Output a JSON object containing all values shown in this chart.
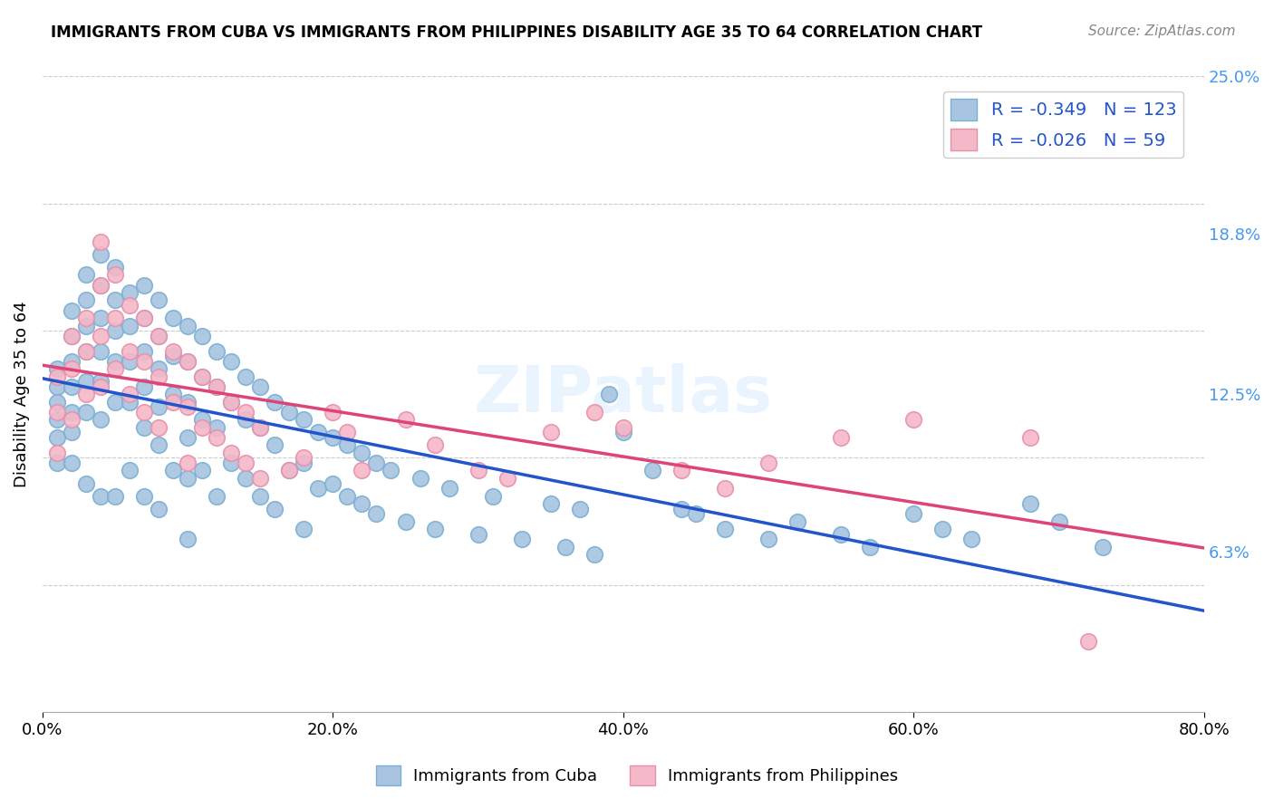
{
  "title": "IMMIGRANTS FROM CUBA VS IMMIGRANTS FROM PHILIPPINES DISABILITY AGE 35 TO 64 CORRELATION CHART",
  "source": "Source: ZipAtlas.com",
  "ylabel": "Disability Age 35 to 64",
  "xmin": 0.0,
  "xmax": 0.8,
  "ymin": 0.0,
  "ymax": 0.25,
  "yticks": [
    0.063,
    0.125,
    0.188,
    0.25
  ],
  "ytick_labels": [
    "6.3%",
    "12.5%",
    "18.8%",
    "25.0%"
  ],
  "xticks": [
    0.0,
    0.2,
    0.4,
    0.6,
    0.8
  ],
  "xtick_labels": [
    "0.0%",
    "20.0%",
    "40.0%",
    "60.0%",
    "80.0%"
  ],
  "cuba_color": "#a8c4e0",
  "cuba_edge": "#7bafd4",
  "philippines_color": "#f4b8c8",
  "philippines_edge": "#e890aa",
  "cuba_line_color": "#2255cc",
  "philippines_line_color": "#dd4477",
  "cuba_R": "-0.349",
  "cuba_N": "123",
  "philippines_R": "-0.026",
  "philippines_N": "59",
  "watermark": "ZIPatlas",
  "cuba_points_x": [
    0.01,
    0.01,
    0.01,
    0.01,
    0.01,
    0.01,
    0.02,
    0.02,
    0.02,
    0.02,
    0.02,
    0.02,
    0.02,
    0.03,
    0.03,
    0.03,
    0.03,
    0.03,
    0.03,
    0.03,
    0.04,
    0.04,
    0.04,
    0.04,
    0.04,
    0.04,
    0.04,
    0.05,
    0.05,
    0.05,
    0.05,
    0.05,
    0.05,
    0.06,
    0.06,
    0.06,
    0.06,
    0.06,
    0.07,
    0.07,
    0.07,
    0.07,
    0.07,
    0.07,
    0.08,
    0.08,
    0.08,
    0.08,
    0.08,
    0.08,
    0.09,
    0.09,
    0.09,
    0.09,
    0.1,
    0.1,
    0.1,
    0.1,
    0.1,
    0.1,
    0.11,
    0.11,
    0.11,
    0.11,
    0.12,
    0.12,
    0.12,
    0.12,
    0.13,
    0.13,
    0.13,
    0.14,
    0.14,
    0.14,
    0.15,
    0.15,
    0.15,
    0.16,
    0.16,
    0.16,
    0.17,
    0.17,
    0.18,
    0.18,
    0.18,
    0.19,
    0.19,
    0.2,
    0.2,
    0.21,
    0.21,
    0.22,
    0.22,
    0.23,
    0.23,
    0.24,
    0.25,
    0.26,
    0.27,
    0.28,
    0.3,
    0.31,
    0.33,
    0.35,
    0.36,
    0.37,
    0.38,
    0.39,
    0.4,
    0.42,
    0.44,
    0.45,
    0.47,
    0.5,
    0.52,
    0.55,
    0.57,
    0.6,
    0.62,
    0.64,
    0.68,
    0.7,
    0.73
  ],
  "cuba_points_y": [
    0.135,
    0.128,
    0.122,
    0.115,
    0.108,
    0.098,
    0.158,
    0.148,
    0.138,
    0.128,
    0.118,
    0.11,
    0.098,
    0.172,
    0.162,
    0.152,
    0.142,
    0.13,
    0.118,
    0.09,
    0.18,
    0.168,
    0.155,
    0.142,
    0.13,
    0.115,
    0.085,
    0.175,
    0.162,
    0.15,
    0.138,
    0.122,
    0.085,
    0.165,
    0.152,
    0.138,
    0.122,
    0.095,
    0.168,
    0.155,
    0.142,
    0.128,
    0.112,
    0.085,
    0.162,
    0.148,
    0.135,
    0.12,
    0.105,
    0.08,
    0.155,
    0.14,
    0.125,
    0.095,
    0.152,
    0.138,
    0.122,
    0.108,
    0.092,
    0.068,
    0.148,
    0.132,
    0.115,
    0.095,
    0.142,
    0.128,
    0.112,
    0.085,
    0.138,
    0.122,
    0.098,
    0.132,
    0.115,
    0.092,
    0.128,
    0.112,
    0.085,
    0.122,
    0.105,
    0.08,
    0.118,
    0.095,
    0.115,
    0.098,
    0.072,
    0.11,
    0.088,
    0.108,
    0.09,
    0.105,
    0.085,
    0.102,
    0.082,
    0.098,
    0.078,
    0.095,
    0.075,
    0.092,
    0.072,
    0.088,
    0.07,
    0.085,
    0.068,
    0.082,
    0.065,
    0.08,
    0.062,
    0.125,
    0.11,
    0.095,
    0.08,
    0.078,
    0.072,
    0.068,
    0.075,
    0.07,
    0.065,
    0.078,
    0.072,
    0.068,
    0.082,
    0.075,
    0.065
  ],
  "phil_points_x": [
    0.01,
    0.01,
    0.01,
    0.02,
    0.02,
    0.02,
    0.03,
    0.03,
    0.03,
    0.04,
    0.04,
    0.04,
    0.04,
    0.05,
    0.05,
    0.05,
    0.06,
    0.06,
    0.06,
    0.07,
    0.07,
    0.07,
    0.08,
    0.08,
    0.08,
    0.09,
    0.09,
    0.1,
    0.1,
    0.1,
    0.11,
    0.11,
    0.12,
    0.12,
    0.13,
    0.13,
    0.14,
    0.14,
    0.15,
    0.15,
    0.17,
    0.18,
    0.2,
    0.21,
    0.22,
    0.25,
    0.27,
    0.3,
    0.32,
    0.35,
    0.38,
    0.4,
    0.44,
    0.47,
    0.5,
    0.55,
    0.6,
    0.68,
    0.72
  ],
  "phil_points_y": [
    0.132,
    0.118,
    0.102,
    0.148,
    0.135,
    0.115,
    0.155,
    0.142,
    0.125,
    0.185,
    0.168,
    0.148,
    0.128,
    0.172,
    0.155,
    0.135,
    0.16,
    0.142,
    0.125,
    0.155,
    0.138,
    0.118,
    0.148,
    0.132,
    0.112,
    0.142,
    0.122,
    0.138,
    0.12,
    0.098,
    0.132,
    0.112,
    0.128,
    0.108,
    0.122,
    0.102,
    0.118,
    0.098,
    0.112,
    0.092,
    0.095,
    0.1,
    0.118,
    0.11,
    0.095,
    0.115,
    0.105,
    0.095,
    0.092,
    0.11,
    0.118,
    0.112,
    0.095,
    0.088,
    0.098,
    0.108,
    0.115,
    0.108,
    0.028
  ]
}
